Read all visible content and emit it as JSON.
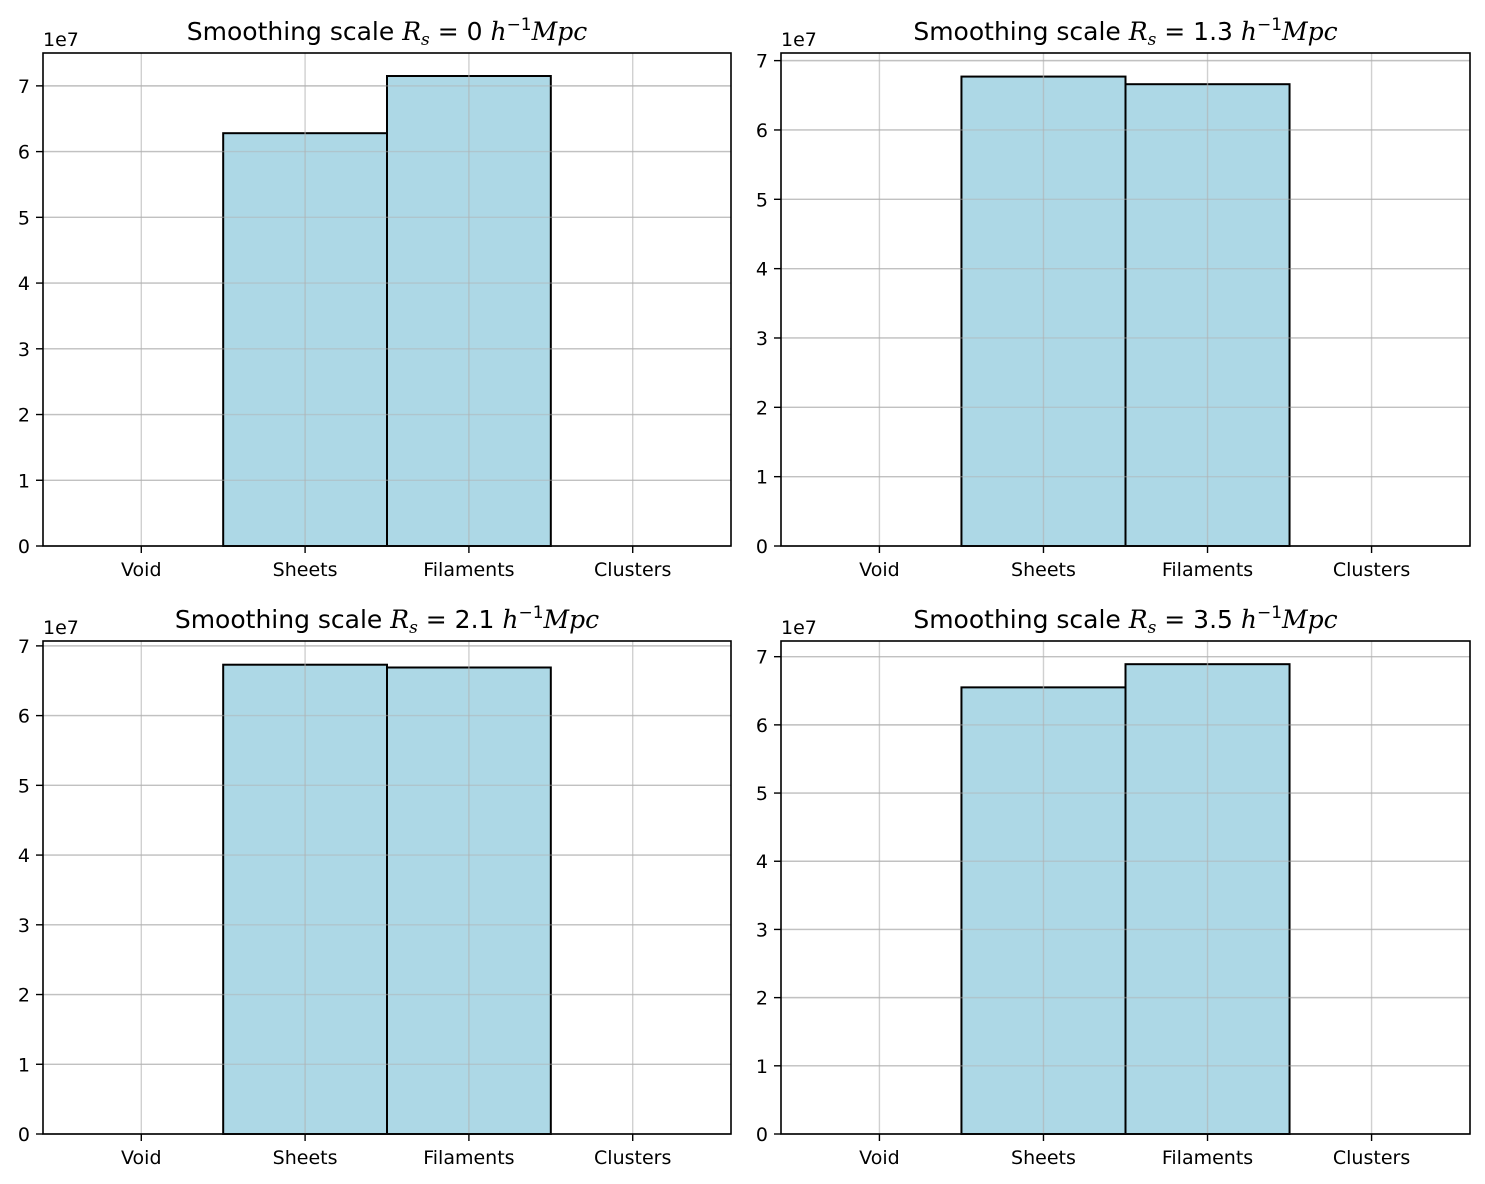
{
  "chart_data": [
    {
      "type": "bar",
      "title_prefix": "Smoothing scale ",
      "title_symbol": "R",
      "title_subscript": "s",
      "title_eq": " = 0 ",
      "title_unit_base": "h",
      "title_unit_exp": "−1",
      "title_unit_tail": "Mpc",
      "categories": [
        "Void",
        "Sheets",
        "Filaments",
        "Clusters"
      ],
      "values": [
        0,
        62800000,
        71500000,
        0
      ],
      "ylim": [
        0,
        75000000
      ],
      "yticks": [
        0,
        1,
        2,
        3,
        4,
        5,
        6,
        7
      ],
      "y_offset_label": "1e7",
      "grid": true,
      "bar_color": "#add8e6",
      "edge_color": "#000000"
    },
    {
      "type": "bar",
      "title_prefix": "Smoothing scale ",
      "title_symbol": "R",
      "title_subscript": "s",
      "title_eq": " = 1.3 ",
      "title_unit_base": "h",
      "title_unit_exp": "−1",
      "title_unit_tail": "Mpc",
      "categories": [
        "Void",
        "Sheets",
        "Filaments",
        "Clusters"
      ],
      "values": [
        0,
        67700000,
        66600000,
        0
      ],
      "ylim": [
        0,
        71100000
      ],
      "yticks": [
        0,
        1,
        2,
        3,
        4,
        5,
        6,
        7
      ],
      "y_offset_label": "1e7",
      "grid": true,
      "bar_color": "#add8e6",
      "edge_color": "#000000"
    },
    {
      "type": "bar",
      "title_prefix": "Smoothing scale ",
      "title_symbol": "R",
      "title_subscript": "s",
      "title_eq": " = 2.1 ",
      "title_unit_base": "h",
      "title_unit_exp": "−1",
      "title_unit_tail": "Mpc",
      "categories": [
        "Void",
        "Sheets",
        "Filaments",
        "Clusters"
      ],
      "values": [
        0,
        67300000,
        66900000,
        0
      ],
      "ylim": [
        0,
        70700000
      ],
      "yticks": [
        0,
        1,
        2,
        3,
        4,
        5,
        6,
        7
      ],
      "y_offset_label": "1e7",
      "grid": true,
      "bar_color": "#add8e6",
      "edge_color": "#000000"
    },
    {
      "type": "bar",
      "title_prefix": "Smoothing scale ",
      "title_symbol": "R",
      "title_subscript": "s",
      "title_eq": " = 3.5 ",
      "title_unit_base": "h",
      "title_unit_exp": "−1",
      "title_unit_tail": "Mpc",
      "categories": [
        "Void",
        "Sheets",
        "Filaments",
        "Clusters"
      ],
      "values": [
        0,
        65500000,
        68900000,
        0
      ],
      "ylim": [
        0,
        72300000
      ],
      "yticks": [
        0,
        1,
        2,
        3,
        4,
        5,
        6,
        7
      ],
      "y_offset_label": "1e7",
      "grid": true,
      "bar_color": "#add8e6",
      "edge_color": "#000000"
    }
  ]
}
